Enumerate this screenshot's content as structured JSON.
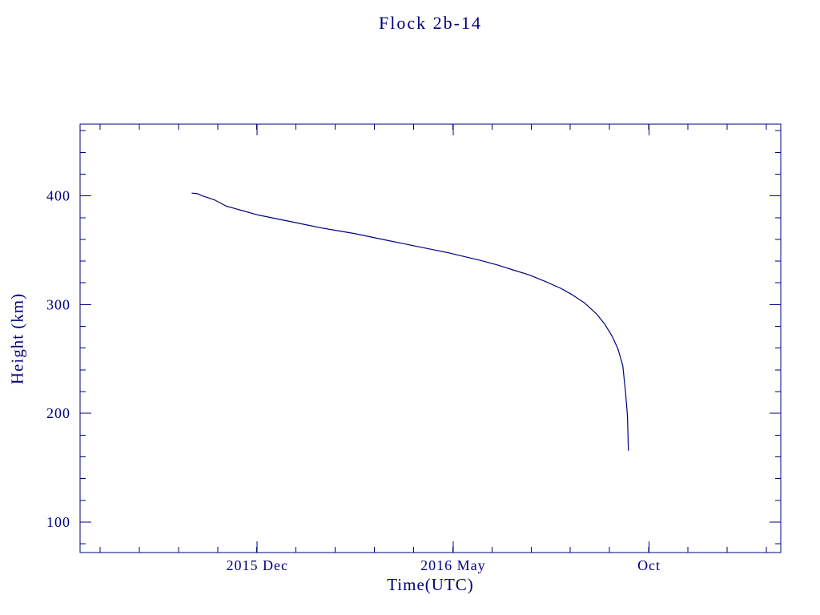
{
  "page": {
    "background_color": "#ffffff",
    "accent_color": "#000080"
  },
  "chart_data": {
    "type": "line",
    "title": "Flock 2b-14",
    "xlabel": "Time(UTC)",
    "ylabel": "Height (km)",
    "line_color": "#000080",
    "axis_color": "#000080",
    "grid": false,
    "legend": "none",
    "xlim": [
      2015.54,
      2017.03
    ],
    "ylim": [
      72,
      466
    ],
    "x_ticks": [
      {
        "value": 2015.9167,
        "label": "2015 Dec"
      },
      {
        "value": 2016.3333,
        "label": "2016 May"
      },
      {
        "value": 2016.75,
        "label": "Oct"
      }
    ],
    "x_minor_step": 0.0833333,
    "y_ticks": [
      {
        "value": 100,
        "label": "100"
      },
      {
        "value": 200,
        "label": "200"
      },
      {
        "value": 300,
        "label": "300"
      },
      {
        "value": 400,
        "label": "400"
      }
    ],
    "y_minor_step": 20,
    "series": [
      {
        "name": "orbital-height",
        "points": [
          [
            2015.778,
            402.5
          ],
          [
            2015.79,
            402.0
          ],
          [
            2015.8,
            400.0
          ],
          [
            2015.825,
            396.5
          ],
          [
            2015.838,
            393.5
          ],
          [
            2015.851,
            390.5
          ],
          [
            2015.868,
            388.5
          ],
          [
            2015.885,
            386.5
          ],
          [
            2015.918,
            382.5
          ],
          [
            2015.952,
            379.5
          ],
          [
            2015.986,
            376.5
          ],
          [
            2016.02,
            373.5
          ],
          [
            2016.054,
            370.5
          ],
          [
            2016.088,
            368.0
          ],
          [
            2016.122,
            365.5
          ],
          [
            2016.155,
            362.5
          ],
          [
            2016.189,
            359.5
          ],
          [
            2016.223,
            356.5
          ],
          [
            2016.257,
            353.5
          ],
          [
            2016.291,
            350.5
          ],
          [
            2016.325,
            347.5
          ],
          [
            2016.359,
            344.0
          ],
          [
            2016.393,
            340.5
          ],
          [
            2016.427,
            336.5
          ],
          [
            2016.46,
            332.0
          ],
          [
            2016.494,
            327.5
          ],
          [
            2016.528,
            321.5
          ],
          [
            2016.562,
            315.0
          ],
          [
            2016.587,
            309.0
          ],
          [
            2016.613,
            301.5
          ],
          [
            2016.638,
            291.5
          ],
          [
            2016.655,
            282.5
          ],
          [
            2016.672,
            270.5
          ],
          [
            2016.684,
            259.0
          ],
          [
            2016.694,
            244.0
          ],
          [
            2016.7,
            219.0
          ],
          [
            2016.704,
            197.0
          ],
          [
            2016.706,
            166.0
          ]
        ]
      }
    ]
  }
}
